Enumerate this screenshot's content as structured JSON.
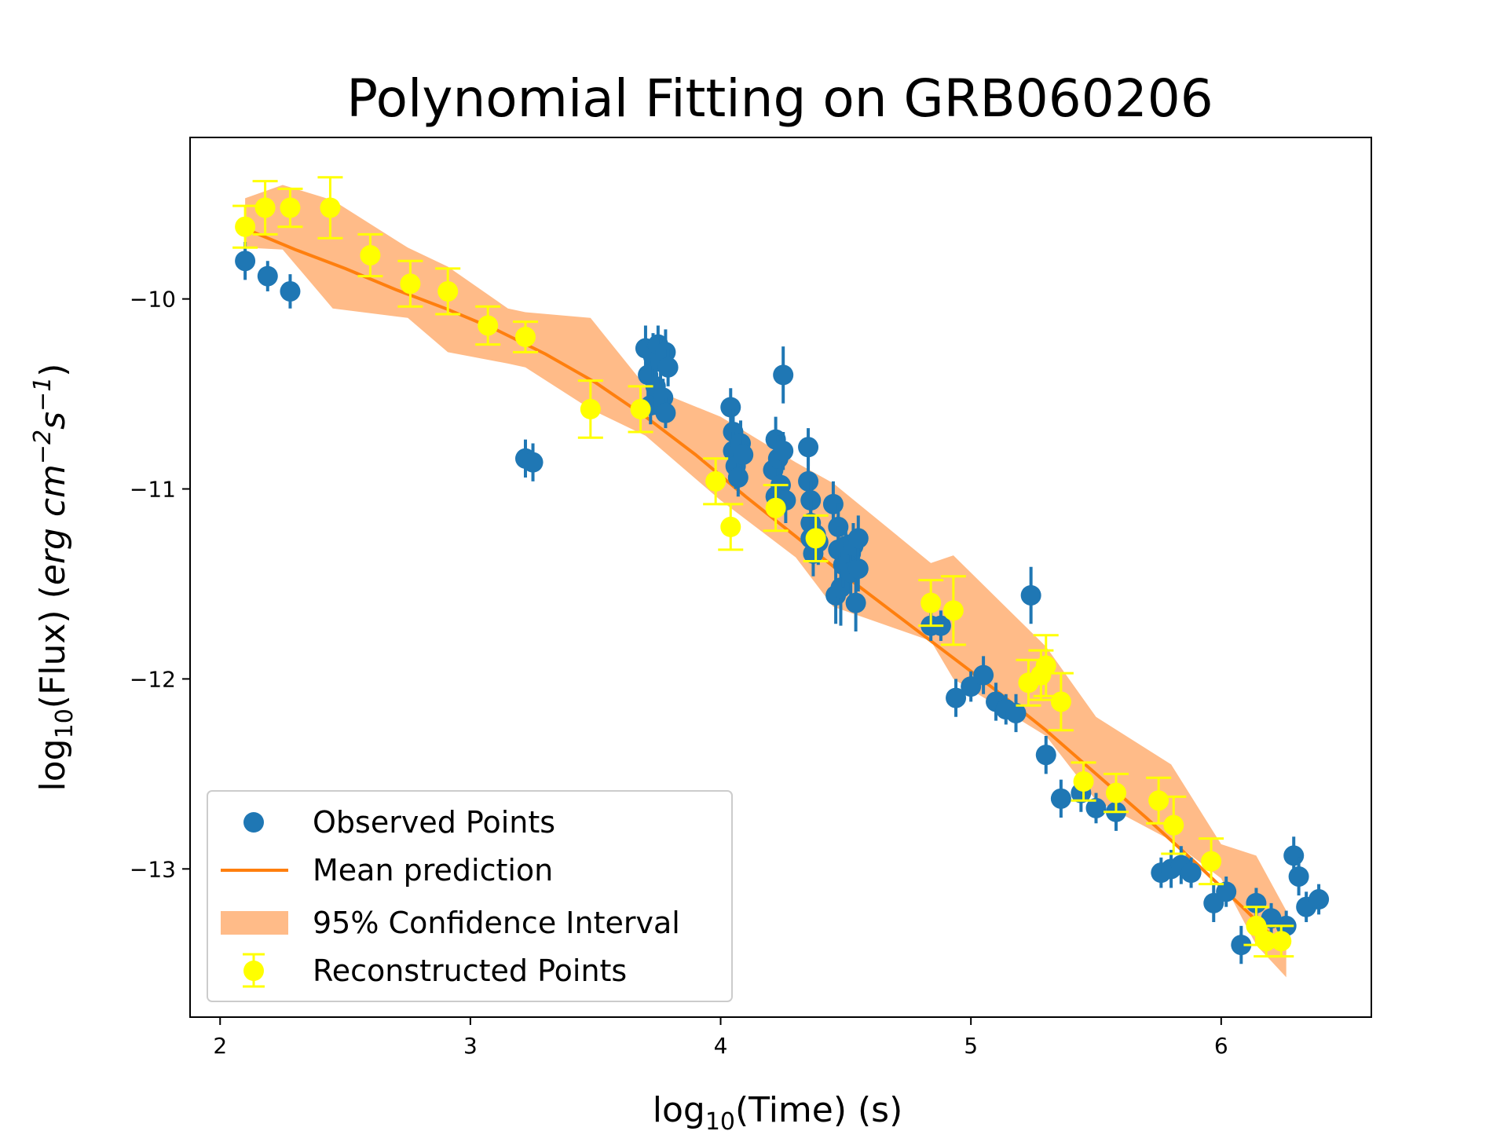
{
  "chart_data": {
    "type": "scatter",
    "title": "Polynomial Fitting on GRB060206",
    "xlabel": {
      "main": "log",
      "sub": "10",
      "rest": "(Time) (s)"
    },
    "ylabel": {
      "main": "log",
      "sub": "10",
      "mid": "(Flux) (",
      "unit1": "erg cm",
      "exp1": "−2",
      "unit2": "s",
      "exp2": "−1",
      "close": ")"
    },
    "xlim": [
      1.88,
      6.6
    ],
    "ylim": [
      -13.78,
      -9.15
    ],
    "xticks": [
      2,
      3,
      4,
      5,
      6
    ],
    "yticks": [
      -10,
      -11,
      -12,
      -13
    ],
    "xtick_labels": [
      "2",
      "3",
      "4",
      "5",
      "6"
    ],
    "ytick_labels": [
      "−10",
      "−11",
      "−12",
      "−13"
    ],
    "colors": {
      "observed": "#1f77b4",
      "mean": "#ff7f0e",
      "ci": "#ffbb88",
      "reconstructed": "#ffff00"
    },
    "legend": {
      "position": "lower-left",
      "entries": [
        "Observed Points",
        "Mean prediction",
        "95% Confidence Interval",
        "Reconstructed Points"
      ]
    },
    "series": [
      {
        "name": "Observed Points",
        "points": [
          [
            2.1,
            -9.8,
            0.1
          ],
          [
            2.19,
            -9.88,
            0.08
          ],
          [
            2.28,
            -9.96,
            0.09
          ],
          [
            3.22,
            -10.84,
            0.1
          ],
          [
            3.25,
            -10.86,
            0.1
          ],
          [
            3.7,
            -10.26,
            0.12
          ],
          [
            3.71,
            -10.4,
            0.15
          ],
          [
            3.72,
            -10.56,
            0.1
          ],
          [
            3.73,
            -10.3,
            0.12
          ],
          [
            3.74,
            -10.46,
            0.15
          ],
          [
            3.75,
            -10.24,
            0.1
          ],
          [
            3.76,
            -10.33,
            0.12
          ],
          [
            3.77,
            -10.52,
            0.1
          ],
          [
            3.78,
            -10.28,
            0.12
          ],
          [
            3.79,
            -10.36,
            0.1
          ],
          [
            3.78,
            -10.6,
            0.08
          ],
          [
            4.04,
            -10.57,
            0.1
          ],
          [
            4.05,
            -10.7,
            0.12
          ],
          [
            4.05,
            -10.8,
            0.1
          ],
          [
            4.06,
            -10.88,
            0.12
          ],
          [
            4.07,
            -10.94,
            0.1
          ],
          [
            4.08,
            -10.76,
            0.12
          ],
          [
            4.09,
            -10.82,
            0.1
          ],
          [
            4.21,
            -10.9,
            0.1
          ],
          [
            4.22,
            -10.74,
            0.12
          ],
          [
            4.22,
            -11.04,
            0.1
          ],
          [
            4.23,
            -10.84,
            0.12
          ],
          [
            4.24,
            -10.98,
            0.1
          ],
          [
            4.25,
            -10.8,
            0.1
          ],
          [
            4.25,
            -10.4,
            0.15
          ],
          [
            4.26,
            -11.06,
            0.12
          ],
          [
            4.35,
            -10.78,
            0.1
          ],
          [
            4.35,
            -10.96,
            0.12
          ],
          [
            4.36,
            -11.06,
            0.1
          ],
          [
            4.36,
            -11.18,
            0.12
          ],
          [
            4.36,
            -11.26,
            0.12
          ],
          [
            4.37,
            -11.34,
            0.12
          ],
          [
            4.38,
            -11.24,
            0.1
          ],
          [
            4.39,
            -11.28,
            0.12
          ],
          [
            4.45,
            -11.08,
            0.12
          ],
          [
            4.46,
            -11.56,
            0.15
          ],
          [
            4.47,
            -11.2,
            0.12
          ],
          [
            4.47,
            -11.32,
            0.12
          ],
          [
            4.48,
            -11.52,
            0.2
          ],
          [
            4.49,
            -11.4,
            0.12
          ],
          [
            4.5,
            -11.3,
            0.1
          ],
          [
            4.51,
            -11.36,
            0.12
          ],
          [
            4.52,
            -11.34,
            0.1
          ],
          [
            4.52,
            -11.44,
            0.12
          ],
          [
            4.53,
            -11.3,
            0.12
          ],
          [
            4.54,
            -11.6,
            0.15
          ],
          [
            4.55,
            -11.42,
            0.12
          ],
          [
            4.55,
            -11.26,
            0.12
          ],
          [
            4.84,
            -11.72,
            0.08
          ],
          [
            4.88,
            -11.72,
            0.08
          ],
          [
            4.94,
            -12.1,
            0.1
          ],
          [
            5.0,
            -12.04,
            0.08
          ],
          [
            5.05,
            -11.98,
            0.1
          ],
          [
            5.1,
            -12.12,
            0.1
          ],
          [
            5.14,
            -12.16,
            0.08
          ],
          [
            5.18,
            -12.18,
            0.1
          ],
          [
            5.24,
            -11.56,
            0.15
          ],
          [
            5.3,
            -12.4,
            0.1
          ],
          [
            5.36,
            -12.63,
            0.1
          ],
          [
            5.44,
            -12.6,
            0.1
          ],
          [
            5.5,
            -12.68,
            0.08
          ],
          [
            5.58,
            -12.7,
            0.1
          ],
          [
            5.76,
            -13.02,
            0.08
          ],
          [
            5.8,
            -13.0,
            0.1
          ],
          [
            5.84,
            -12.98,
            0.1
          ],
          [
            5.88,
            -13.02,
            0.08
          ],
          [
            5.97,
            -13.18,
            0.1
          ],
          [
            6.02,
            -13.12,
            0.08
          ],
          [
            6.08,
            -13.4,
            0.1
          ],
          [
            6.14,
            -13.18,
            0.08
          ],
          [
            6.2,
            -13.26,
            0.08
          ],
          [
            6.26,
            -13.3,
            0.08
          ],
          [
            6.29,
            -12.93,
            0.1
          ],
          [
            6.31,
            -13.04,
            0.1
          ],
          [
            6.34,
            -13.2,
            0.08
          ],
          [
            6.39,
            -13.16,
            0.08
          ]
        ]
      },
      {
        "name": "Reconstructed Points",
        "points": [
          [
            2.1,
            -9.62,
            0.11
          ],
          [
            2.18,
            -9.52,
            0.14
          ],
          [
            2.28,
            -9.52,
            0.1
          ],
          [
            2.44,
            -9.52,
            0.16
          ],
          [
            2.6,
            -9.77,
            0.11
          ],
          [
            2.76,
            -9.92,
            0.12
          ],
          [
            2.91,
            -9.96,
            0.12
          ],
          [
            3.07,
            -10.14,
            0.1
          ],
          [
            3.22,
            -10.2,
            0.08
          ],
          [
            3.48,
            -10.58,
            0.15
          ],
          [
            3.68,
            -10.58,
            0.12
          ],
          [
            3.98,
            -10.96,
            0.12
          ],
          [
            4.04,
            -11.2,
            0.12
          ],
          [
            4.22,
            -11.1,
            0.12
          ],
          [
            4.38,
            -11.26,
            0.12
          ],
          [
            4.84,
            -11.6,
            0.12
          ],
          [
            4.93,
            -11.64,
            0.18
          ],
          [
            5.23,
            -12.02,
            0.12
          ],
          [
            5.28,
            -11.98,
            0.13
          ],
          [
            5.3,
            -11.93,
            0.16
          ],
          [
            5.36,
            -12.12,
            0.15
          ],
          [
            5.45,
            -12.54,
            0.1
          ],
          [
            5.58,
            -12.6,
            0.1
          ],
          [
            5.75,
            -12.64,
            0.12
          ],
          [
            5.81,
            -12.77,
            0.15
          ],
          [
            5.96,
            -12.96,
            0.12
          ],
          [
            6.14,
            -13.3,
            0.1
          ],
          [
            6.18,
            -13.38,
            0.08
          ],
          [
            6.24,
            -13.38,
            0.08
          ]
        ]
      },
      {
        "name": "Mean prediction",
        "x": [
          2.1,
          2.3,
          2.5,
          2.7,
          2.9,
          3.1,
          3.3,
          3.5,
          3.7,
          3.9,
          4.1,
          4.3,
          4.5,
          4.7,
          4.9,
          5.1,
          5.3,
          5.5,
          5.7,
          5.9,
          6.1,
          6.2
        ],
        "y": [
          -9.63,
          -9.74,
          -9.84,
          -9.95,
          -10.05,
          -10.16,
          -10.29,
          -10.44,
          -10.62,
          -10.82,
          -11.04,
          -11.25,
          -11.46,
          -11.66,
          -11.86,
          -12.06,
          -12.27,
          -12.5,
          -12.73,
          -12.97,
          -13.22,
          -13.35
        ]
      },
      {
        "name": "95% Confidence Interval",
        "x": [
          2.1,
          2.25,
          2.45,
          2.75,
          2.91,
          3.15,
          3.22,
          3.48,
          3.7,
          4.0,
          4.3,
          4.45,
          4.84,
          4.93,
          5.3,
          5.5,
          5.8,
          6.0,
          6.14,
          6.26
        ],
        "upper": [
          -9.47,
          -9.4,
          -9.48,
          -9.73,
          -9.83,
          -10.05,
          -10.07,
          -10.1,
          -10.46,
          -10.62,
          -10.86,
          -10.97,
          -11.39,
          -11.35,
          -11.83,
          -12.2,
          -12.45,
          -12.87,
          -12.93,
          -13.22
        ],
        "lower": [
          -9.73,
          -9.74,
          -10.05,
          -10.1,
          -10.28,
          -10.34,
          -10.36,
          -10.58,
          -10.72,
          -11.06,
          -11.36,
          -11.62,
          -11.8,
          -12.0,
          -12.3,
          -12.64,
          -12.85,
          -13.05,
          -13.4,
          -13.57
        ]
      }
    ]
  }
}
